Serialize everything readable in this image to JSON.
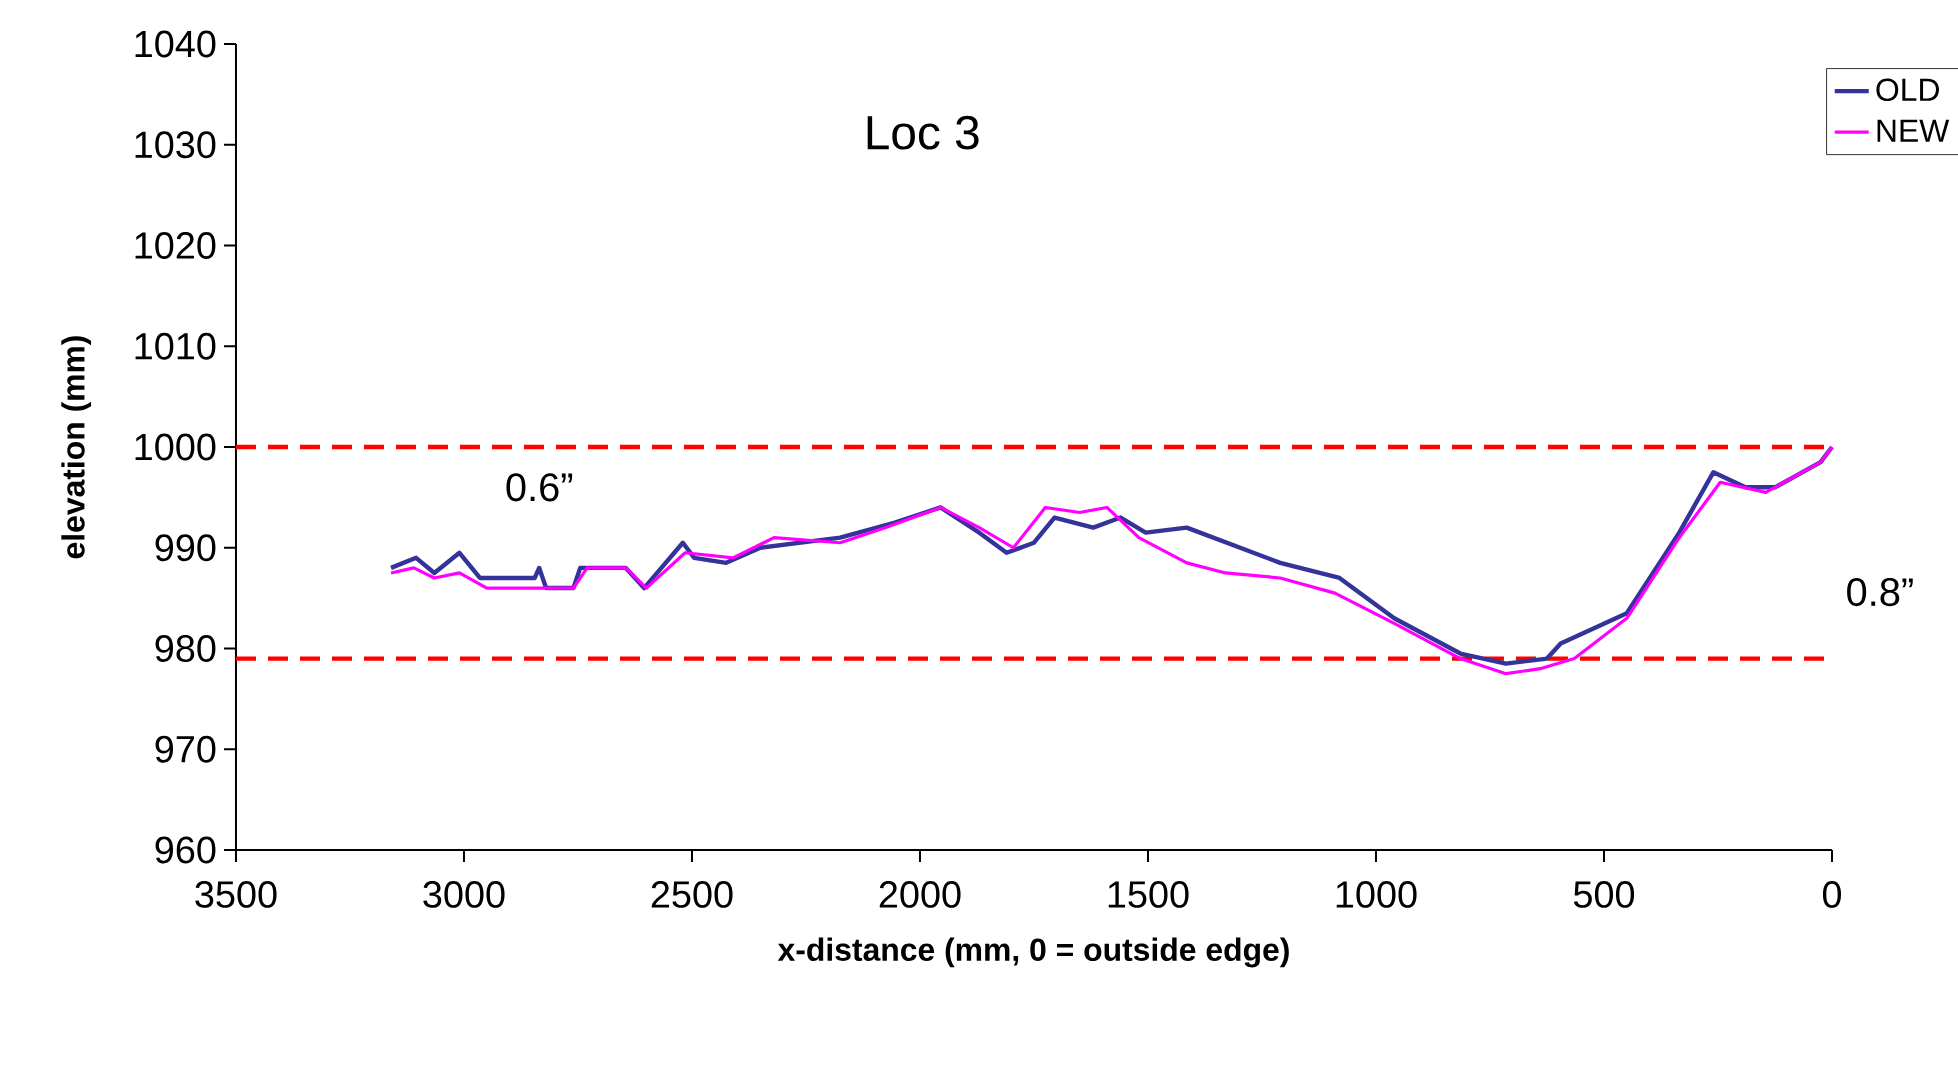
{
  "chart_data": {
    "type": "line",
    "title": "Loc 3",
    "xlabel": "x-distance (mm, 0 = outside edge)",
    "ylabel": "elevation (mm)",
    "xlim": [
      3500,
      0
    ],
    "xticks": [
      3500,
      3000,
      2500,
      2000,
      1500,
      1000,
      500,
      0
    ],
    "ylim": [
      960,
      1040
    ],
    "yticks": [
      960,
      970,
      980,
      990,
      1000,
      1010,
      1020,
      1030,
      1040
    ],
    "legend": "top right",
    "grid": false,
    "marker": "none",
    "line_style": "solid",
    "ref_lines": [
      {
        "axis": "y",
        "value": 1000,
        "color": "#ff0000",
        "line_style": "dashed"
      },
      {
        "axis": "y",
        "value": 979,
        "color": "#ff0000",
        "line_style": "dashed"
      }
    ],
    "annotations": [
      "0.6”",
      "0.8”"
    ],
    "series": [
      {
        "name": "OLD",
        "color": "#333399",
        "x": [
          3160,
          3105,
          3065,
          3010,
          2965,
          2845,
          2835,
          2820,
          2760,
          2745,
          2645,
          2605,
          2520,
          2495,
          2425,
          2350,
          2175,
          2055,
          1955,
          1870,
          1810,
          1750,
          1705,
          1620,
          1560,
          1505,
          1415,
          1210,
          1080,
          960,
          815,
          715,
          625,
          595,
          450,
          335,
          260,
          190,
          125,
          25,
          0
        ],
        "values": [
          988,
          989,
          987.5,
          989.5,
          987,
          987,
          988,
          986,
          986,
          988,
          988,
          986,
          990.5,
          989,
          988.5,
          990,
          991,
          992.5,
          994,
          991.5,
          989.5,
          990.5,
          993,
          992,
          993,
          991.5,
          992,
          988.5,
          987,
          983,
          979.5,
          978.5,
          979,
          980.5,
          983.5,
          991.5,
          997.5,
          996,
          996,
          998.5,
          1000
        ]
      },
      {
        "name": "NEW",
        "color": "#ff00ff",
        "x": [
          3160,
          3110,
          3065,
          3010,
          2950,
          2845,
          2760,
          2730,
          2645,
          2600,
          2515,
          2410,
          2320,
          2175,
          2075,
          1955,
          1870,
          1795,
          1725,
          1650,
          1590,
          1520,
          1415,
          1330,
          1210,
          1090,
          960,
          815,
          715,
          640,
          565,
          450,
          335,
          245,
          145,
          25,
          0
        ],
        "values": [
          987.5,
          988,
          987,
          987.5,
          986,
          986,
          986,
          988,
          988,
          986,
          989.5,
          989,
          991,
          990.5,
          992,
          994,
          992,
          990,
          994,
          993.5,
          994,
          991,
          988.5,
          987.5,
          987,
          985.5,
          982.5,
          979,
          977.5,
          978,
          979,
          983,
          991,
          996.5,
          995.5,
          998.5,
          1000
        ]
      }
    ]
  }
}
